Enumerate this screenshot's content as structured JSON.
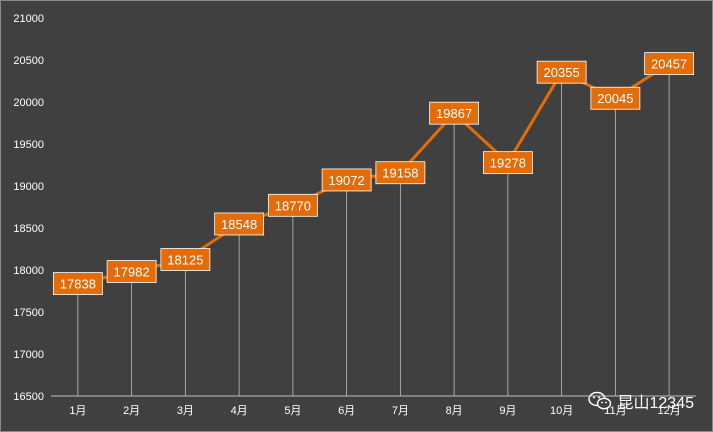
{
  "chart_data": {
    "type": "line",
    "categories": [
      "1月",
      "2月",
      "3月",
      "4月",
      "5月",
      "6月",
      "7月",
      "8月",
      "9月",
      "10月",
      "11月",
      "12月"
    ],
    "values": [
      17838,
      17982,
      18125,
      18548,
      18770,
      19072,
      19158,
      19867,
      19278,
      20355,
      20045,
      20457
    ],
    "ylim": [
      16500,
      21000
    ],
    "yticks": [
      16500,
      17000,
      17500,
      18000,
      18500,
      19000,
      19500,
      20000,
      20500,
      21000
    ],
    "data_labels": true,
    "grid": false,
    "drop_lines": true,
    "colors": {
      "background": "#404040",
      "line": "#E36C09",
      "label_bg": "#E36C09",
      "text": "#FFFFFF",
      "drop_line": "#BFBFBF"
    }
  },
  "watermark": {
    "icon": "wechat-icon",
    "text": "昆山12345"
  }
}
